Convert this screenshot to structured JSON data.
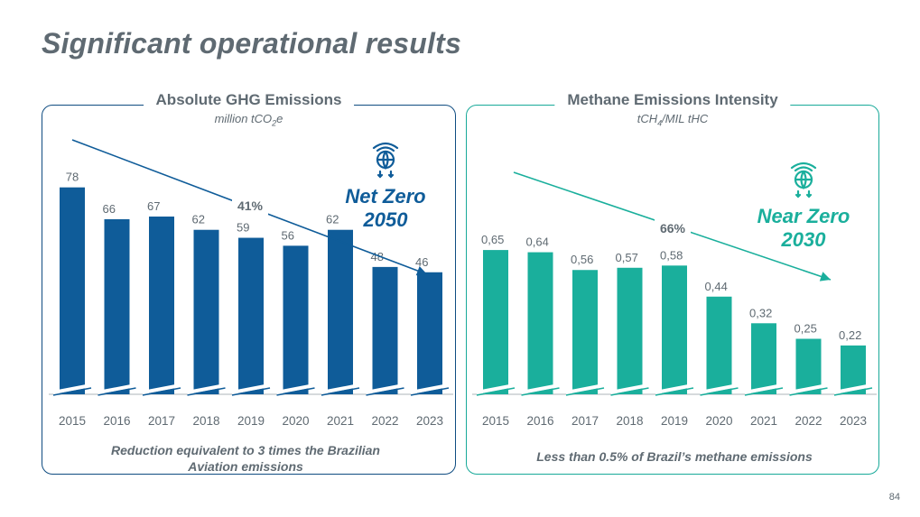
{
  "title": "Significant operational results",
  "page_number": "84",
  "colors": {
    "blue": "#0f5c99",
    "teal": "#1aaf9c",
    "gray": "#5f6a72"
  },
  "panels": [
    {
      "title": "Absolute GHG Emissions",
      "unit_main": "million tCO",
      "unit_sub": "2",
      "unit_end": "e"
    },
    {
      "title": "Methane Emissions Intensity",
      "unit_main": "tCH",
      "unit_sub": "4",
      "unit_end": "/MIL tHC"
    }
  ],
  "chart_data": [
    {
      "type": "bar",
      "title": "Absolute GHG Emissions",
      "ylabel": "million tCO2e",
      "categories": [
        "2015",
        "2016",
        "2017",
        "2018",
        "2019",
        "2020",
        "2021",
        "2022",
        "2023"
      ],
      "values": [
        78,
        66,
        67,
        62,
        59,
        56,
        62,
        48,
        46
      ],
      "value_labels": [
        "78",
        "66",
        "67",
        "62",
        "59",
        "56",
        "62",
        "48",
        "46"
      ],
      "annotation": {
        "reduction": "41%",
        "icon": "globe-icon",
        "target_line1": "Net Zero",
        "target_line2": "2050"
      },
      "footnote": "Reduction equivalent to 3 times the Brazilian Aviation emissions"
    },
    {
      "type": "bar",
      "title": "Methane Emissions Intensity",
      "ylabel": "tCH4/MIL tHC",
      "categories": [
        "2015",
        "2016",
        "2017",
        "2018",
        "2019",
        "2020",
        "2021",
        "2022",
        "2023"
      ],
      "values": [
        0.65,
        0.64,
        0.56,
        0.57,
        0.58,
        0.44,
        0.32,
        0.25,
        0.22
      ],
      "value_labels": [
        "0,65",
        "0,64",
        "0,56",
        "0,57",
        "0,58",
        "0,44",
        "0,32",
        "0,25",
        "0,22"
      ],
      "annotation": {
        "reduction": "66%",
        "icon": "globe-icon",
        "target_line1": "Near Zero",
        "target_line2": "2030"
      },
      "footnote": "Less than 0.5% of Brazil’s methane emissions"
    }
  ]
}
